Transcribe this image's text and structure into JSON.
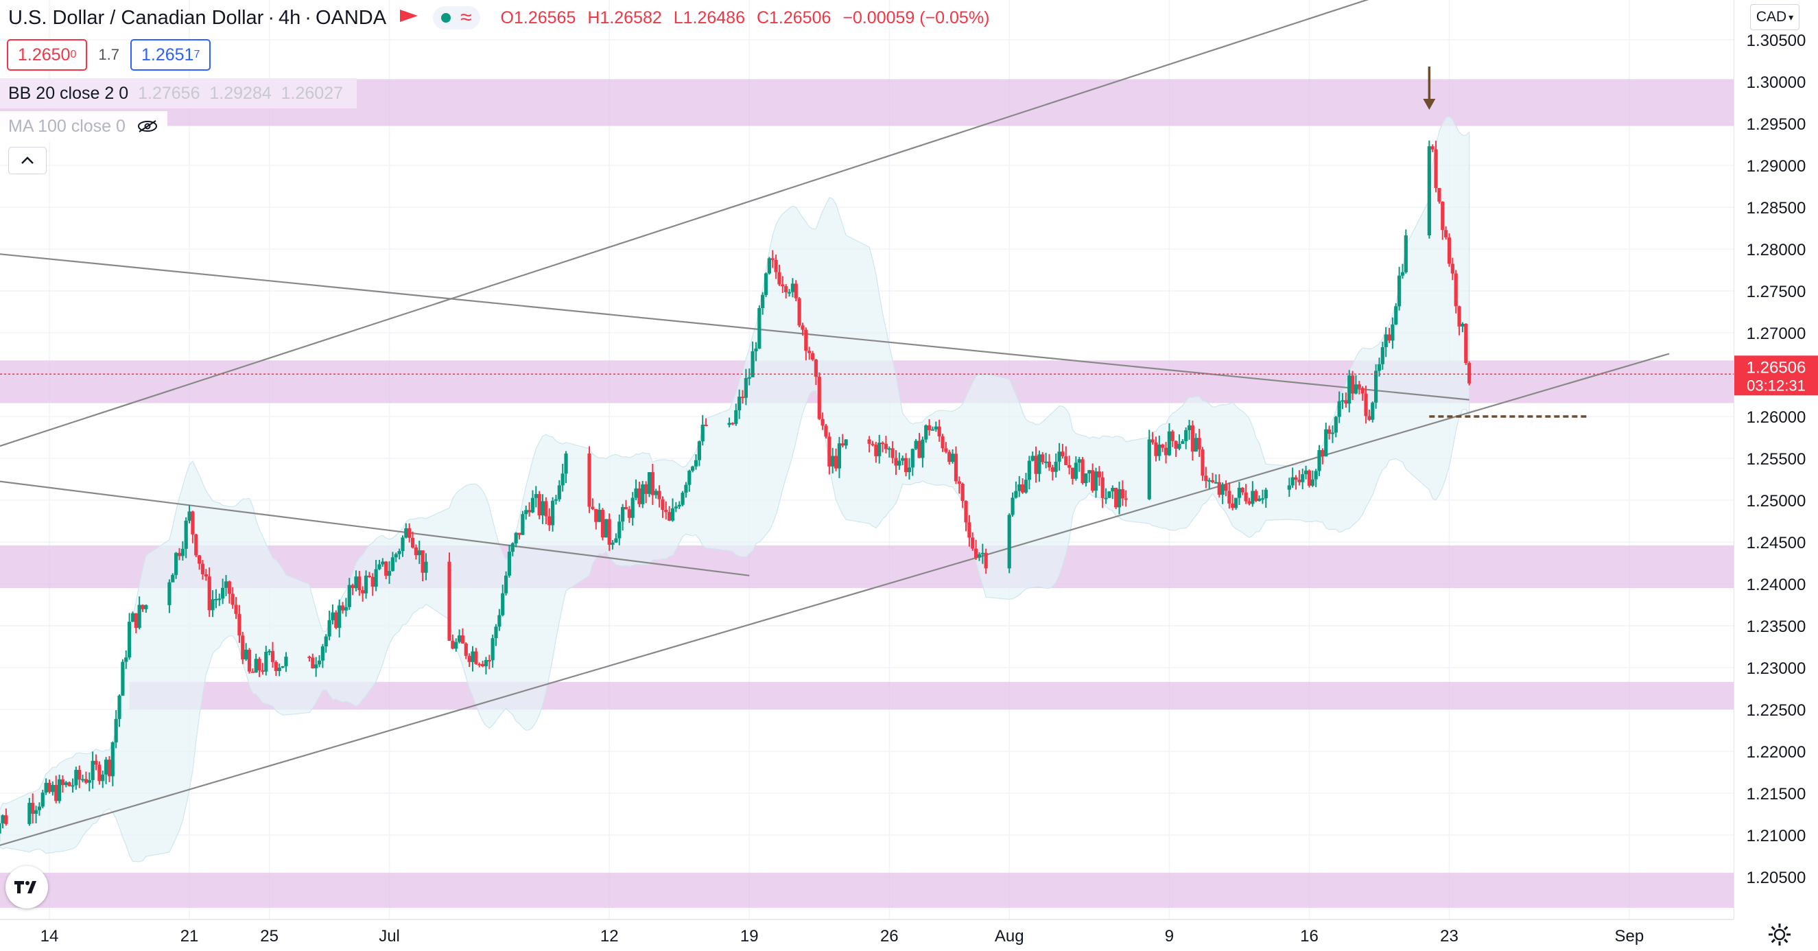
{
  "header": {
    "symbol": "U.S. Dollar / Canadian Dollar",
    "timeframe": "4h",
    "broker": "OANDA",
    "open": "O1.26565",
    "high": "H1.26582",
    "low": "L1.26486",
    "close": "C1.26506",
    "change": "−0.00059 (−0.05%)"
  },
  "trade": {
    "sell_price_main": "1.2650",
    "sell_price_pip": "0",
    "spread": "1.7",
    "buy_price_main": "1.2651",
    "buy_price_pip": "7"
  },
  "indicators": {
    "bb_name": "BB 20 close 2 0",
    "bb_values": "1.27656  1.29284  1.26027",
    "ma_name": "MA 100 close 0"
  },
  "currency_button": "CAD",
  "price_label": {
    "price": "1.26506",
    "countdown": "03:12:31"
  },
  "colors": {
    "up": "#089981",
    "down": "#f23645",
    "zone": "#e1bee7",
    "trendline": "#888888",
    "bb_fill": "#e6f3f7",
    "arrow": "#6d4c2f"
  },
  "chart_data": {
    "type": "candlestick",
    "symbol": "USDCAD",
    "interval": "4h",
    "x_tick_labels": [
      "14",
      "21",
      "25",
      "Jul",
      "12",
      "19",
      "26",
      "Aug",
      "9",
      "16",
      "23",
      "Sep"
    ],
    "y_tick_labels": [
      "1.30500",
      "1.30000",
      "1.29500",
      "1.29000",
      "1.28500",
      "1.28000",
      "1.27500",
      "1.27000",
      "1.26500",
      "1.26000",
      "1.25500",
      "1.25000",
      "1.24500",
      "1.24000",
      "1.23500",
      "1.23000",
      "1.22500",
      "1.22000",
      "1.21500",
      "1.21000",
      "1.20500"
    ],
    "y_range": [
      1.2013,
      1.31
    ],
    "last_price": 1.26506,
    "price_path": [
      {
        "date": "2021-06-11",
        "price": 1.211
      },
      {
        "date": "2021-06-14",
        "price": 1.215
      },
      {
        "date": "2021-06-15",
        "price": 1.216
      },
      {
        "date": "2021-06-17",
        "price": 1.2185
      },
      {
        "date": "2021-06-18",
        "price": 1.235
      },
      {
        "date": "2021-06-20",
        "price": 1.241
      },
      {
        "date": "2021-06-21",
        "price": 1.248
      },
      {
        "date": "2021-06-22",
        "price": 1.238
      },
      {
        "date": "2021-06-23",
        "price": 1.239
      },
      {
        "date": "2021-06-24",
        "price": 1.229
      },
      {
        "date": "2021-06-25",
        "price": 1.231
      },
      {
        "date": "2021-06-27",
        "price": 1.23
      },
      {
        "date": "2021-06-29",
        "price": 1.239
      },
      {
        "date": "2021-07-01",
        "price": 1.242
      },
      {
        "date": "2021-07-02",
        "price": 1.247
      },
      {
        "date": "2021-07-04",
        "price": 1.233
      },
      {
        "date": "2021-07-06",
        "price": 1.231
      },
      {
        "date": "2021-07-07",
        "price": 1.243
      },
      {
        "date": "2021-07-08",
        "price": 1.25
      },
      {
        "date": "2021-07-09",
        "price": 1.248
      },
      {
        "date": "2021-07-10",
        "price": 1.258
      },
      {
        "date": "2021-07-11",
        "price": 1.25
      },
      {
        "date": "2021-07-12",
        "price": 1.2455
      },
      {
        "date": "2021-07-13",
        "price": 1.249
      },
      {
        "date": "2021-07-14",
        "price": 1.252
      },
      {
        "date": "2021-07-15",
        "price": 1.247
      },
      {
        "date": "2021-07-16",
        "price": 1.254
      },
      {
        "date": "2021-07-17",
        "price": 1.26
      },
      {
        "date": "2021-07-18",
        "price": 1.258
      },
      {
        "date": "2021-07-19",
        "price": 1.265
      },
      {
        "date": "2021-07-20",
        "price": 1.278
      },
      {
        "date": "2021-07-21",
        "price": 1.276
      },
      {
        "date": "2021-07-22",
        "price": 1.268
      },
      {
        "date": "2021-07-23",
        "price": 1.254
      },
      {
        "date": "2021-07-24",
        "price": 1.257
      },
      {
        "date": "2021-07-26",
        "price": 1.256
      },
      {
        "date": "2021-07-27",
        "price": 1.254
      },
      {
        "date": "2021-07-28",
        "price": 1.259
      },
      {
        "date": "2021-07-29",
        "price": 1.256
      },
      {
        "date": "2021-07-30",
        "price": 1.245
      },
      {
        "date": "2021-07-31",
        "price": 1.243
      },
      {
        "date": "2021-08-01",
        "price": 1.249
      },
      {
        "date": "2021-08-02",
        "price": 1.254
      },
      {
        "date": "2021-08-03",
        "price": 1.255
      },
      {
        "date": "2021-08-05",
        "price": 1.253
      },
      {
        "date": "2021-08-06",
        "price": 1.25
      },
      {
        "date": "2021-08-07",
        "price": 1.251
      },
      {
        "date": "2021-08-08",
        "price": 1.256
      },
      {
        "date": "2021-08-09",
        "price": 1.257
      },
      {
        "date": "2021-08-10",
        "price": 1.258
      },
      {
        "date": "2021-08-11",
        "price": 1.252
      },
      {
        "date": "2021-08-12",
        "price": 1.25
      },
      {
        "date": "2021-08-13",
        "price": 1.251
      },
      {
        "date": "2021-08-15",
        "price": 1.2515
      },
      {
        "date": "2021-08-16",
        "price": 1.253
      },
      {
        "date": "2021-08-17",
        "price": 1.258
      },
      {
        "date": "2021-08-18",
        "price": 1.264
      },
      {
        "date": "2021-08-19",
        "price": 1.261
      },
      {
        "date": "2021-08-20",
        "price": 1.27
      },
      {
        "date": "2021-08-21",
        "price": 1.283
      },
      {
        "date": "2021-08-21T20:00",
        "price": 1.29
      },
      {
        "date": "2021-08-22",
        "price": 1.293
      },
      {
        "date": "2021-08-22T12:00",
        "price": 1.286
      },
      {
        "date": "2021-08-23",
        "price": 1.279
      },
      {
        "date": "2021-08-23T12:00",
        "price": 1.272
      },
      {
        "date": "2021-08-24",
        "price": 1.265
      }
    ],
    "resistance_support_zones": [
      {
        "from": 1.2947,
        "to": 1.3003
      },
      {
        "from": 1.2616,
        "to": 1.2667
      },
      {
        "from": 1.2395,
        "to": 1.2446
      },
      {
        "from": 1.225,
        "to": 1.2283
      },
      {
        "from": 1.2013,
        "to": 1.2055
      }
    ],
    "trendlines": [
      {
        "from": {
          "date": "2021-06-09",
          "price": 1.2545
        },
        "to": {
          "date": "2021-09-01",
          "price": 1.32
        }
      },
      {
        "from": {
          "date": "2021-06-09",
          "price": 1.207
        },
        "to": {
          "date": "2021-09-03",
          "price": 1.2675
        }
      },
      {
        "from": {
          "date": "2021-06-09",
          "price": 1.28
        },
        "to": {
          "date": "2021-08-24",
          "price": 1.262
        }
      },
      {
        "from": {
          "date": "2021-06-09",
          "price": 1.253
        },
        "to": {
          "date": "2021-07-19",
          "price": 1.241
        }
      }
    ],
    "horizontal_level": 1.26,
    "marker_arrow_at": "2021-08-22"
  }
}
